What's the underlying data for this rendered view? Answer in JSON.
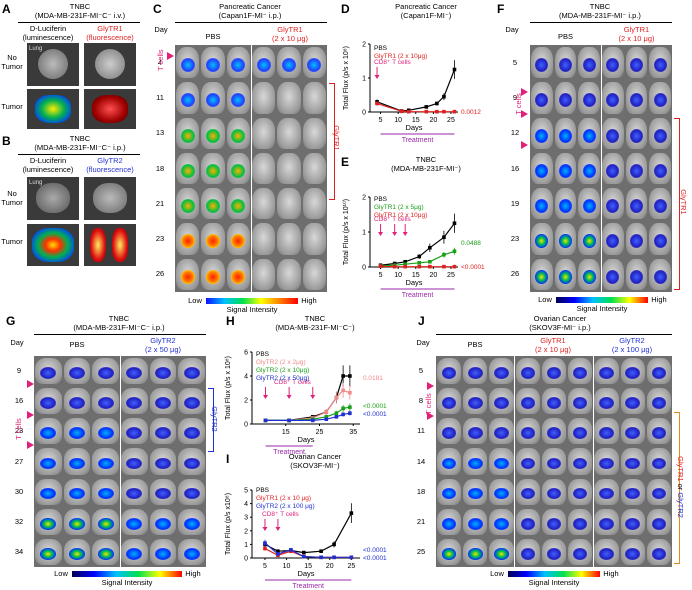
{
  "panels": {
    "A": {
      "letter": "A",
      "title1": "TNBC",
      "title2": "(MDA-MB-231F-MI⁻C⁻ i.v.)",
      "col1a": "D-Luciferin",
      "col1b": "(luminescence)",
      "col2a": "GlyTR1",
      "col2b": "(fluorescence)",
      "row1a": "No",
      "row1b": "Tumor",
      "row2": "Tumor",
      "lung": "Lung"
    },
    "B": {
      "letter": "B",
      "title1": "TNBC",
      "title2": "(MDA-MB-231F-MI⁻C⁻ i.p.)",
      "col1a": "D-Luciferin",
      "col1b": "(luminescence)",
      "col2a": "GlyTR2",
      "col2b": "(fluorescence)",
      "row1a": "No",
      "row1b": "Tumor",
      "row2": "Tumor",
      "lung": "Lung"
    },
    "C": {
      "letter": "C",
      "title1": "Pancreatic Cancer",
      "title2": "(Capan1F-MI⁻ i.p.)",
      "day": "Day",
      "pbs": "PBS",
      "trt1": "GlyTR1",
      "trt2": "(2 x 10 μg)",
      "days": [
        "4",
        "11",
        "13",
        "18",
        "21",
        "23",
        "26"
      ],
      "tcells": "T cells",
      "bracket": "GlyTR1",
      "low": "Low",
      "high": "High",
      "sig": "Signal Intensity"
    },
    "D": {
      "letter": "D",
      "title1": "Pancreatic Cancer",
      "title2": "(Capan1F-MI⁻)",
      "ylabel": "Total Flux (p/s x 10⁸)",
      "xlabel": "Days",
      "treatment": "Treatment",
      "cd8": "CD8⁺ T cells",
      "leg1": "PBS",
      "leg2": "GlyTR1 (2 x 10μg)",
      "pval": "0.0012",
      "yticks": [
        "0",
        "1",
        "2"
      ],
      "xticks": [
        "5",
        "10",
        "15",
        "20",
        "25"
      ]
    },
    "E": {
      "letter": "E",
      "title1": "TNBC",
      "title2": "(MDA-MB-231F-MI⁻)",
      "ylabel": "Total Flux (p/s x 10¹⁰)",
      "xlabel": "Days",
      "treatment": "Treatment",
      "cd8": "CD8⁺ T cells",
      "leg1": "PBS",
      "leg2": "GlyTR1 (2 x 5μg)",
      "leg3": "GlyTR1 (2 x 10μg)",
      "pval1": "0.0488",
      "pval2": "<0.0001",
      "yticks": [
        "0",
        "1",
        "2"
      ],
      "xticks": [
        "5",
        "10",
        "15",
        "20",
        "25"
      ]
    },
    "F": {
      "letter": "F",
      "title1": "TNBC",
      "title2": "(MDA-MB-231F-MI⁻ i.p.)",
      "day": "Day",
      "pbs": "PBS",
      "trt1": "GlyTR1",
      "trt2": "(2 x 10 μg)",
      "days": [
        "5",
        "9",
        "12",
        "16",
        "19",
        "23",
        "26"
      ],
      "tcells": "T cells",
      "bracket": "GlyTR1",
      "low": "Low",
      "high": "High",
      "sig": "Signal Intensity"
    },
    "G": {
      "letter": "G",
      "title1": "TNBC",
      "title2": "(MDA-MB-231F-MI⁻C⁻ i.p.)",
      "day": "Day",
      "pbs": "PBS",
      "trt1": "GlyTR2",
      "trt2": "(2 x 50 μg)",
      "days": [
        "9",
        "16",
        "23",
        "27",
        "30",
        "32",
        "34"
      ],
      "tcells": "T cells",
      "bracket": "GlyTR2",
      "low": "Low",
      "high": "High",
      "sig": "Signal Intensity"
    },
    "H": {
      "letter": "H",
      "title1": "TNBC",
      "title2": "(MDA-MB-231F-MI⁻C⁻)",
      "ylabel": "Total Flux (p/s x 10⁸)",
      "xlabel": "Days",
      "treatment": "Treatment",
      "cd8": "CD8⁺ T cells",
      "leg1": "PBS",
      "leg2": "GlyTR2 (2 x 2μg)",
      "leg3": "GlyTR2 (2 x 10μg)",
      "leg4": "GlyTR2 (2 x 50μg)",
      "pval1": "0.0181",
      "pval2": "<0.0001",
      "pval3": "<0.0001",
      "yticks": [
        "0",
        "2",
        "4",
        "6"
      ],
      "xticks": [
        "15",
        "25",
        "35"
      ]
    },
    "I": {
      "letter": "I",
      "title1": "Ovarian Cancer",
      "title2": "(SKOV3F-MI⁻)",
      "ylabel": "Total Flux (p/s x10⁸)",
      "xlabel": "Days",
      "treatment": "Treatment",
      "cd8": "CD8⁺ T cells",
      "leg1": "PBS",
      "leg2": "GlyTR1 (2 x 10 μg)",
      "leg3": "GlyTR2 (2 x 100 μg)",
      "pval1": "<0.0001",
      "pval2": "<0.0001",
      "yticks": [
        "0",
        "1",
        "2",
        "3",
        "4",
        "5"
      ],
      "xticks": [
        "5",
        "10",
        "15",
        "20",
        "25"
      ]
    },
    "J": {
      "letter": "J",
      "title1": "Ovarian Cancer",
      "title2": "(SKOV3F-MI⁻ i.p.)",
      "day": "Day",
      "pbs": "PBS",
      "trt1": "GlyTR1",
      "trt2": "(2 x 10 μg)",
      "trt3": "GlyTR2",
      "trt4": "(2 x 100 μg)",
      "days": [
        "5",
        "8",
        "11",
        "14",
        "18",
        "21",
        "25"
      ],
      "tcells": "T cells",
      "bracket1": "GlyTR1",
      "bracketOr": " or ",
      "bracket2": "GlyTR2",
      "low": "Low",
      "high": "High",
      "sig": "Signal Intensity"
    }
  },
  "chart_data": [
    {
      "panel": "D",
      "type": "line",
      "title": "Pancreatic Cancer (Capan1F-MI⁻)",
      "xlabel": "Days",
      "ylabel": "Total Flux (p/s x 10⁸)",
      "xlim": [
        2,
        27
      ],
      "ylim": [
        0,
        2
      ],
      "series": [
        {
          "name": "PBS",
          "color": "#000000",
          "x": [
            4,
            11,
            13,
            18,
            21,
            23,
            26
          ],
          "y": [
            0.3,
            0.03,
            0.05,
            0.15,
            0.25,
            0.45,
            1.25
          ]
        },
        {
          "name": "GlyTR1 (2 x 10μg)",
          "color": "#e02020",
          "x": [
            4,
            11,
            13,
            18,
            21,
            23,
            26
          ],
          "y": [
            0.25,
            0.02,
            0.01,
            0.01,
            0.01,
            0.01,
            0.01
          ]
        }
      ]
    },
    {
      "panel": "E",
      "type": "line",
      "title": "TNBC (MDA-MB-231F-MI⁻)",
      "xlabel": "Days",
      "ylabel": "Total Flux (p/s x 10¹⁰)",
      "xlim": [
        2,
        27
      ],
      "ylim": [
        0,
        2
      ],
      "series": [
        {
          "name": "PBS",
          "color": "#000000",
          "x": [
            5,
            9,
            12,
            16,
            19,
            23,
            26
          ],
          "y": [
            0.05,
            0.1,
            0.15,
            0.3,
            0.55,
            0.85,
            1.25
          ]
        },
        {
          "name": "GlyTR1 (2 x 5μg)",
          "color": "#18a018",
          "x": [
            5,
            9,
            12,
            16,
            19,
            23,
            26
          ],
          "y": [
            0.03,
            0.05,
            0.08,
            0.12,
            0.15,
            0.35,
            0.45
          ]
        },
        {
          "name": "GlyTR1 (2 x 10μg)",
          "color": "#e02020",
          "x": [
            5,
            9,
            12,
            16,
            19,
            23,
            26
          ],
          "y": [
            0.02,
            0.01,
            0.01,
            0.01,
            0.01,
            0.01,
            0.01
          ]
        }
      ]
    },
    {
      "panel": "H",
      "type": "line",
      "title": "TNBC (MDA-MB-231F-MI⁻C⁻)",
      "xlabel": "Days",
      "ylabel": "Total Flux (p/s x 10⁸)",
      "xlim": [
        5,
        37
      ],
      "ylim": [
        0,
        6
      ],
      "series": [
        {
          "name": "PBS",
          "color": "#000000",
          "x": [
            9,
            16,
            23,
            27,
            30,
            32,
            34
          ],
          "y": [
            0.3,
            0.3,
            0.6,
            1.0,
            2.2,
            4.0,
            4.0
          ]
        },
        {
          "name": "GlyTR2 (2 x 2μg)",
          "color": "#f28a8a",
          "x": [
            9,
            16,
            23,
            27,
            30,
            32,
            34
          ],
          "y": [
            0.3,
            0.3,
            0.5,
            1.0,
            2.2,
            2.8,
            2.6
          ]
        },
        {
          "name": "GlyTR2 (2 x 10μg)",
          "color": "#18a018",
          "x": [
            9,
            16,
            23,
            27,
            30,
            32,
            34
          ],
          "y": [
            0.3,
            0.3,
            0.4,
            0.6,
            0.9,
            1.3,
            1.4
          ]
        },
        {
          "name": "GlyTR2 (2 x 50μg)",
          "color": "#2030d0",
          "x": [
            9,
            16,
            23,
            27,
            30,
            32,
            34
          ],
          "y": [
            0.3,
            0.3,
            0.3,
            0.4,
            0.6,
            0.8,
            0.9
          ]
        }
      ]
    },
    {
      "panel": "I",
      "type": "line",
      "title": "Ovarian Cancer (SKOV3F-MI⁻)",
      "xlabel": "Days",
      "ylabel": "Total Flux (p/s x10⁸)",
      "xlim": [
        2,
        27
      ],
      "ylim": [
        0,
        5
      ],
      "series": [
        {
          "name": "PBS",
          "color": "#000000",
          "x": [
            5,
            8,
            11,
            14,
            18,
            21,
            25
          ],
          "y": [
            1.0,
            0.5,
            0.55,
            0.4,
            0.5,
            1.0,
            3.3
          ]
        },
        {
          "name": "GlyTR1 (2 x 10 μg)",
          "color": "#e02020",
          "x": [
            5,
            8,
            11,
            14,
            18,
            21,
            25
          ],
          "y": [
            0.7,
            0.2,
            0.5,
            0.1,
            0.05,
            0.05,
            0.05
          ]
        },
        {
          "name": "GlyTR2 (2 x 100 μg)",
          "color": "#2030d0",
          "x": [
            5,
            8,
            11,
            14,
            18,
            21,
            25
          ],
          "y": [
            1.1,
            0.3,
            0.6,
            0.1,
            0.05,
            0.05,
            0.05
          ]
        }
      ]
    }
  ]
}
